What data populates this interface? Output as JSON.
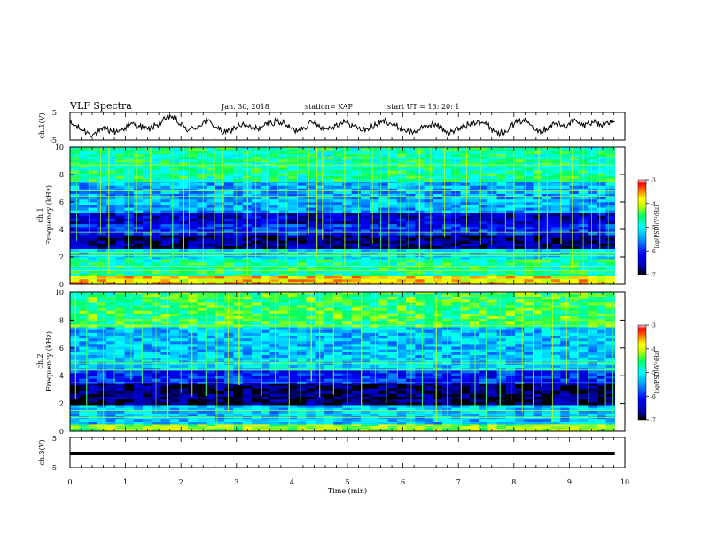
{
  "header": {
    "title": "VLF Spectra",
    "date": "Jan. 30, 2018",
    "station": "station= KAP",
    "start": "start  UT =   13: 20: 1"
  },
  "chart_data": [
    {
      "type": "line",
      "panel": "ch1_waveform",
      "ylabel": "ch.1(V)",
      "ylim": [
        -5,
        5
      ],
      "yticks": [
        "5",
        "-5"
      ],
      "xlim": [
        0,
        10
      ],
      "x_start": 0,
      "x_end": 9.82,
      "y": [
        0.9,
        0.3,
        -0.8,
        -1.6,
        -2.4,
        -2.9,
        -2.3,
        -1.5,
        -1.0,
        -1.7,
        -2.0,
        -1.4,
        -0.5,
        0.4,
        0.9,
        0.2,
        -0.6,
        -1.2,
        -0.4,
        0.6,
        1.5,
        2.6,
        3.8,
        2.5,
        0.8,
        -0.4,
        -1.4,
        -0.9,
        0.2,
        1.2,
        1.8,
        0.9,
        -0.4,
        -1.7,
        -2.5,
        -1.6,
        -0.6,
        0.3,
        0.5,
        -0.3,
        -1.0,
        -0.8,
        -0.2,
        0.5,
        1.2,
        1.9,
        1.4,
        0.6,
        -0.5,
        -1.6,
        -1.1,
        -0.4,
        0.6,
        1.3,
        0.7,
        -0.3,
        -0.9,
        -0.3,
        0.4,
        1.0,
        1.5,
        0.8,
        0.1,
        -0.7,
        -1.4,
        -1.0,
        -0.2,
        0.6,
        1.4,
        2.0,
        1.1,
        0.2,
        -0.6,
        -1.2,
        -1.9,
        -2.2,
        -1.5,
        -0.8,
        0.2,
        0.9,
        0.3,
        -0.7,
        -1.6,
        -2.3,
        -1.7,
        -0.9,
        -0.2,
        0.6,
        1.3,
        2.1,
        1.5,
        0.5,
        -0.8,
        -1.9,
        -2.6,
        -1.5,
        -0.3,
        0.8,
        1.6,
        2.4,
        1.3,
        0.2,
        -0.9,
        -1.7,
        -0.8,
        0.4,
        1.1,
        0.5,
        -0.3,
        1.2,
        2.0,
        1.0,
        0.2,
        0.9,
        1.8,
        1.1,
        0.4,
        1.2,
        2.0,
        1.6
      ]
    },
    {
      "type": "heatmap",
      "panel": "ch1_spectrogram",
      "ylabel": "Frequency (kHz)",
      "channel_label": "ch.1",
      "xlim": [
        0,
        10
      ],
      "ylim": [
        0,
        10
      ],
      "x_end": 9.82,
      "colorbar": {
        "label": "log(PSD)(V²/Hz)",
        "range": [
          -7,
          -3
        ],
        "ticks": [
          "-3",
          "-4",
          "-5",
          "-6",
          "-7"
        ]
      },
      "bands_khz": [
        {
          "from": 0,
          "to": 0.6,
          "level": -3.8
        },
        {
          "from": 0.6,
          "to": 1.8,
          "level": -4.7
        },
        {
          "from": 1.8,
          "to": 2.6,
          "level": -5.1
        },
        {
          "from": 2.6,
          "to": 3.6,
          "level": -6.7
        },
        {
          "from": 3.6,
          "to": 4.4,
          "level": -6.0
        },
        {
          "from": 4.4,
          "to": 5.2,
          "level": -6.4
        },
        {
          "from": 5.2,
          "to": 7.5,
          "level": -5.4
        },
        {
          "from": 7.5,
          "to": 10,
          "level": -4.7
        }
      ],
      "tones_khz": [
        0.4,
        1.0,
        1.3,
        2.1,
        2.3,
        3.8,
        5.2,
        6.4,
        6.8,
        8.7
      ],
      "spherics_min": [
        0.12,
        0.35,
        0.55,
        0.7,
        1.05,
        1.2,
        1.45,
        1.62,
        1.85,
        2.05,
        2.15,
        2.4,
        2.6,
        2.75,
        3.0,
        3.2,
        3.35,
        3.55,
        3.75,
        3.9,
        4.1,
        4.3,
        4.45,
        4.55,
        4.7,
        4.95,
        5.2,
        5.45,
        5.6,
        5.75,
        5.95,
        6.1,
        6.3,
        6.5,
        6.75,
        6.95,
        7.15,
        7.4,
        7.6,
        7.85,
        8.0,
        8.2,
        8.45,
        8.6,
        8.85,
        9.05,
        9.25,
        9.4,
        9.55,
        9.7
      ]
    },
    {
      "type": "heatmap",
      "panel": "ch2_spectrogram",
      "ylabel": "Frequency (kHz)",
      "channel_label": "ch.2",
      "xlim": [
        0,
        10
      ],
      "ylim": [
        0,
        10
      ],
      "x_end": 9.82,
      "colorbar": {
        "label": "log(PSD)(V²/Hz)",
        "range": [
          -7,
          -3
        ],
        "ticks": [
          "-3",
          "-4",
          "-5",
          "-6",
          "-7"
        ]
      },
      "bands_khz": [
        {
          "from": 0,
          "to": 0.5,
          "level": -4.2
        },
        {
          "from": 0.5,
          "to": 1.9,
          "level": -5.3
        },
        {
          "from": 1.9,
          "to": 3.4,
          "level": -6.8
        },
        {
          "from": 3.4,
          "to": 4.4,
          "level": -6.0
        },
        {
          "from": 4.4,
          "to": 5.3,
          "level": -5.2
        },
        {
          "from": 5.3,
          "to": 7.5,
          "level": -5.3
        },
        {
          "from": 7.5,
          "to": 10,
          "level": -4.5
        }
      ],
      "tones_khz": [
        0.3,
        1.0,
        1.5,
        3.5,
        4.4,
        4.9,
        5.1,
        7.6
      ],
      "spherics_min": [
        0.1,
        0.3,
        0.6,
        0.8,
        1.1,
        1.3,
        1.55,
        1.75,
        2.0,
        2.2,
        2.45,
        2.65,
        2.85,
        3.05,
        3.3,
        3.45,
        3.7,
        3.95,
        4.15,
        4.35,
        4.5,
        4.75,
        5.0,
        5.25,
        5.5,
        5.7,
        5.9,
        6.15,
        6.35,
        6.6,
        6.8,
        7.05,
        7.3,
        7.5,
        7.75,
        7.95,
        8.15,
        8.35,
        8.5,
        8.7,
        8.95,
        9.15,
        9.35,
        9.5,
        9.65,
        9.78
      ]
    },
    {
      "type": "line",
      "panel": "ch3_waveform",
      "ylabel": "ch.3(V)",
      "ylim": [
        -5,
        5
      ],
      "yticks": [
        "5",
        "-5"
      ],
      "xlim": [
        0,
        10
      ],
      "x_start": 0,
      "x_end": 9.82,
      "constant_value": -0.3
    }
  ],
  "xaxis": {
    "label": "Time (min)",
    "ticks": [
      "0",
      "1",
      "2",
      "3",
      "4",
      "5",
      "6",
      "7",
      "8",
      "9",
      "10"
    ]
  },
  "freq_ticks": [
    "0",
    "2",
    "4",
    "6",
    "8",
    "10"
  ],
  "colors": {
    "cmap": [
      "#000000",
      "#0000b0",
      "#0000ff",
      "#0090ff",
      "#00ffff",
      "#00ff80",
      "#a0ff00",
      "#ffff00",
      "#ff8000",
      "#ff0000",
      "#ffffff"
    ]
  }
}
